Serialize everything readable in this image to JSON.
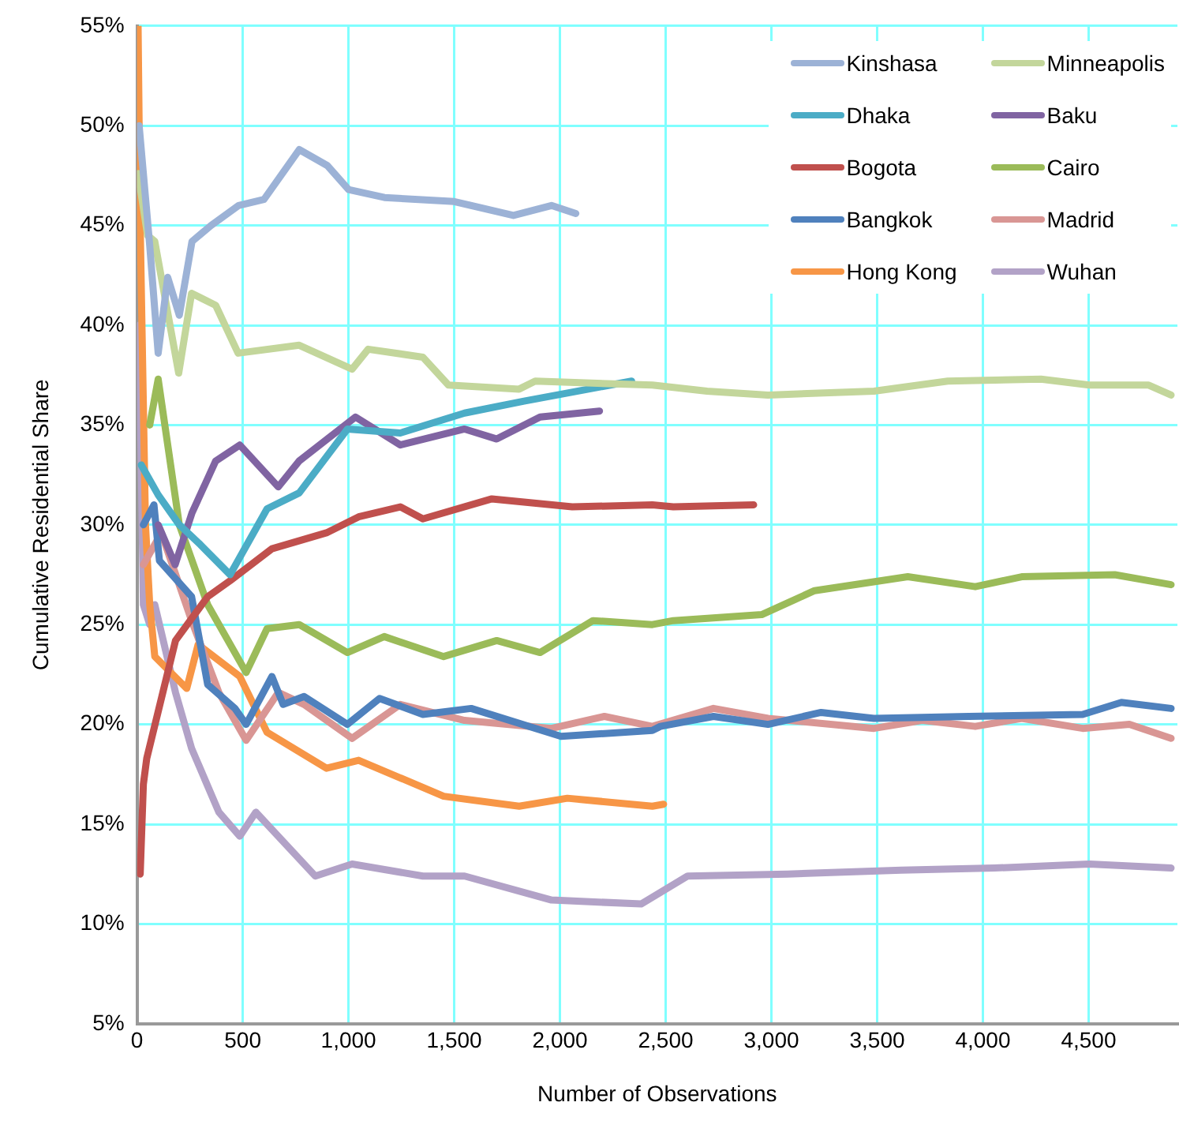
{
  "chart_data": {
    "type": "line",
    "xlabel": "Number of Observations",
    "ylabel": "Cumulative Residential Share",
    "xlim": [
      0,
      4920
    ],
    "ylim": [
      5,
      55
    ],
    "xticks": [
      0,
      500,
      {
        "value": 1000,
        "label": "1,000"
      },
      {
        "value": 1500,
        "label": "1,500"
      },
      {
        "value": 2000,
        "label": "2,000"
      },
      {
        "value": 2500,
        "label": "2,500"
      },
      {
        "value": 3000,
        "label": "3,000"
      },
      {
        "value": 3500,
        "label": "3,500"
      },
      {
        "value": 4000,
        "label": "4,000"
      },
      {
        "value": 4500,
        "label": "4,500"
      }
    ],
    "yticks": [
      {
        "value": 5,
        "label": "5%"
      },
      {
        "value": 10,
        "label": "10%"
      },
      {
        "value": 15,
        "label": "15%"
      },
      {
        "value": 20,
        "label": "20%"
      },
      {
        "value": 25,
        "label": "25%"
      },
      {
        "value": 30,
        "label": "30%"
      },
      {
        "value": 35,
        "label": "35%"
      },
      {
        "value": 40,
        "label": "40%"
      },
      {
        "value": 45,
        "label": "45%"
      },
      {
        "value": 50,
        "label": "50%"
      },
      {
        "value": 55,
        "label": "55%"
      }
    ],
    "grid": true,
    "legend": "top right",
    "series": [
      {
        "name": "Kinshasa",
        "color": "#9cb2d6",
        "x": [
          10,
          60,
          100,
          145,
          200,
          260,
          350,
          480,
          600,
          767,
          900,
          1000,
          1170,
          1500,
          1780,
          1960,
          2075
        ],
        "values": [
          50,
          44,
          38.6,
          42.4,
          40.5,
          44.2,
          45,
          46,
          46.3,
          48.8,
          48,
          46.8,
          46.4,
          46.2,
          45.5,
          46,
          45.6
        ]
      },
      {
        "name": "Minneapolis",
        "color": "#c3d69b",
        "x": [
          5,
          50,
          84,
          197,
          258,
          372,
          478,
          767,
          1017,
          1093,
          1352,
          1473,
          1807,
          1883,
          2437,
          2696,
          2984,
          3485,
          3834,
          4275,
          4503,
          4784,
          4890
        ],
        "values": [
          47.6,
          44.5,
          44.2,
          37.6,
          41.6,
          41,
          38.6,
          39,
          37.8,
          38.8,
          38.4,
          37,
          36.8,
          37.2,
          37,
          36.7,
          36.5,
          36.7,
          37.2,
          37.3,
          37,
          37,
          36.5
        ]
      },
      {
        "name": "Dhaka",
        "color": "#4bacc6",
        "x": [
          20,
          100,
          200,
          300,
          440,
          615,
          767,
          995,
          1245,
          1549,
          1830,
          2339
        ],
        "values": [
          33,
          31.5,
          30,
          29,
          27.5,
          30.8,
          31.6,
          34.8,
          34.6,
          35.6,
          36.2,
          37.2
        ]
      },
      {
        "name": "Baku",
        "color": "#8064a2",
        "x": [
          100,
          180,
          260,
          372,
          486,
          668,
          767,
          1033,
          1245,
          1549,
          1701,
          1906,
          2187
        ],
        "values": [
          30,
          28,
          30.6,
          33.2,
          34,
          31.9,
          33.2,
          35.4,
          34,
          34.8,
          34.3,
          35.4,
          35.7
        ]
      },
      {
        "name": "Bogota",
        "color": "#c0504d",
        "x": [
          15,
          30,
          46,
          182,
          334,
          440,
          638,
          896,
          1048,
          1245,
          1352,
          1678,
          2058,
          2437,
          2536,
          2916
        ],
        "values": [
          12.5,
          17,
          18.3,
          24.2,
          26.4,
          27.2,
          28.8,
          29.6,
          30.4,
          30.9,
          30.3,
          31.3,
          30.9,
          31,
          30.9,
          31
        ]
      },
      {
        "name": "Cairo",
        "color": "#9bbb59",
        "x": [
          60,
          100,
          200,
          334,
          516,
          615,
          767,
          995,
          1169,
          1450,
          1701,
          1906,
          2156,
          2437,
          2536,
          2954,
          3204,
          3645,
          3964,
          4184,
          4624,
          4890
        ],
        "values": [
          35,
          37.3,
          30,
          26,
          22.6,
          24.8,
          25,
          23.6,
          24.4,
          23.4,
          24.2,
          23.6,
          25.2,
          25,
          25.2,
          25.5,
          26.7,
          27.4,
          26.9,
          27.4,
          27.5,
          27
        ]
      },
      {
        "name": "Bangkok",
        "color": "#4f81bd",
        "x": [
          30,
          80,
          106,
          258,
          334,
          463,
          516,
          638,
          691,
          790,
          995,
          1147,
          1352,
          1580,
          2005,
          2437,
          2475,
          2726,
          2984,
          3235,
          3485,
          3933,
          4472,
          4655,
          4890
        ],
        "values": [
          30,
          31,
          28.2,
          26.4,
          22,
          20.8,
          20,
          22.4,
          21,
          21.4,
          20,
          21.3,
          20.5,
          20.8,
          19.4,
          19.7,
          19.9,
          20.4,
          20,
          20.6,
          20.3,
          20.4,
          20.5,
          21.1,
          20.8
        ]
      },
      {
        "name": "Madrid",
        "color": "#d99694",
        "x": [
          30,
          115,
          258,
          387,
          516,
          668,
          790,
          1017,
          1245,
          1549,
          1960,
          2210,
          2437,
          2726,
          2984,
          3485,
          3713,
          3964,
          4184,
          4472,
          4693,
          4890
        ],
        "values": [
          28,
          29.6,
          25.2,
          21.6,
          19.2,
          21.6,
          21,
          19.3,
          21,
          20.2,
          19.8,
          20.4,
          19.9,
          20.8,
          20.3,
          19.8,
          20.2,
          19.9,
          20.3,
          19.8,
          20,
          19.3
        ]
      },
      {
        "name": "Hong Kong",
        "color": "#f79646",
        "x": [
          5,
          15,
          40,
          60,
          84,
          235,
          289,
          486,
          615,
          896,
          1048,
          1450,
          1807,
          2035,
          2437,
          2490
        ],
        "values": [
          55,
          45,
          30,
          26,
          23.4,
          21.8,
          24,
          22.4,
          19.6,
          17.8,
          18.2,
          16.4,
          15.9,
          16.3,
          15.9,
          16
        ]
      },
      {
        "name": "Wuhan",
        "color": "#b2a2c7",
        "x": [
          10,
          30,
          60,
          84,
          182,
          258,
          387,
          486,
          562,
          843,
          1017,
          1352,
          1549,
          1960,
          2384,
          2604,
          3075,
          3614,
          4055,
          4503,
          4890
        ],
        "values": [
          40,
          26,
          25,
          26,
          21.6,
          18.8,
          15.6,
          14.4,
          15.6,
          12.4,
          13,
          12.4,
          12.4,
          11.2,
          11,
          12.4,
          12.5,
          12.7,
          12.8,
          13,
          12.8
        ]
      }
    ]
  }
}
